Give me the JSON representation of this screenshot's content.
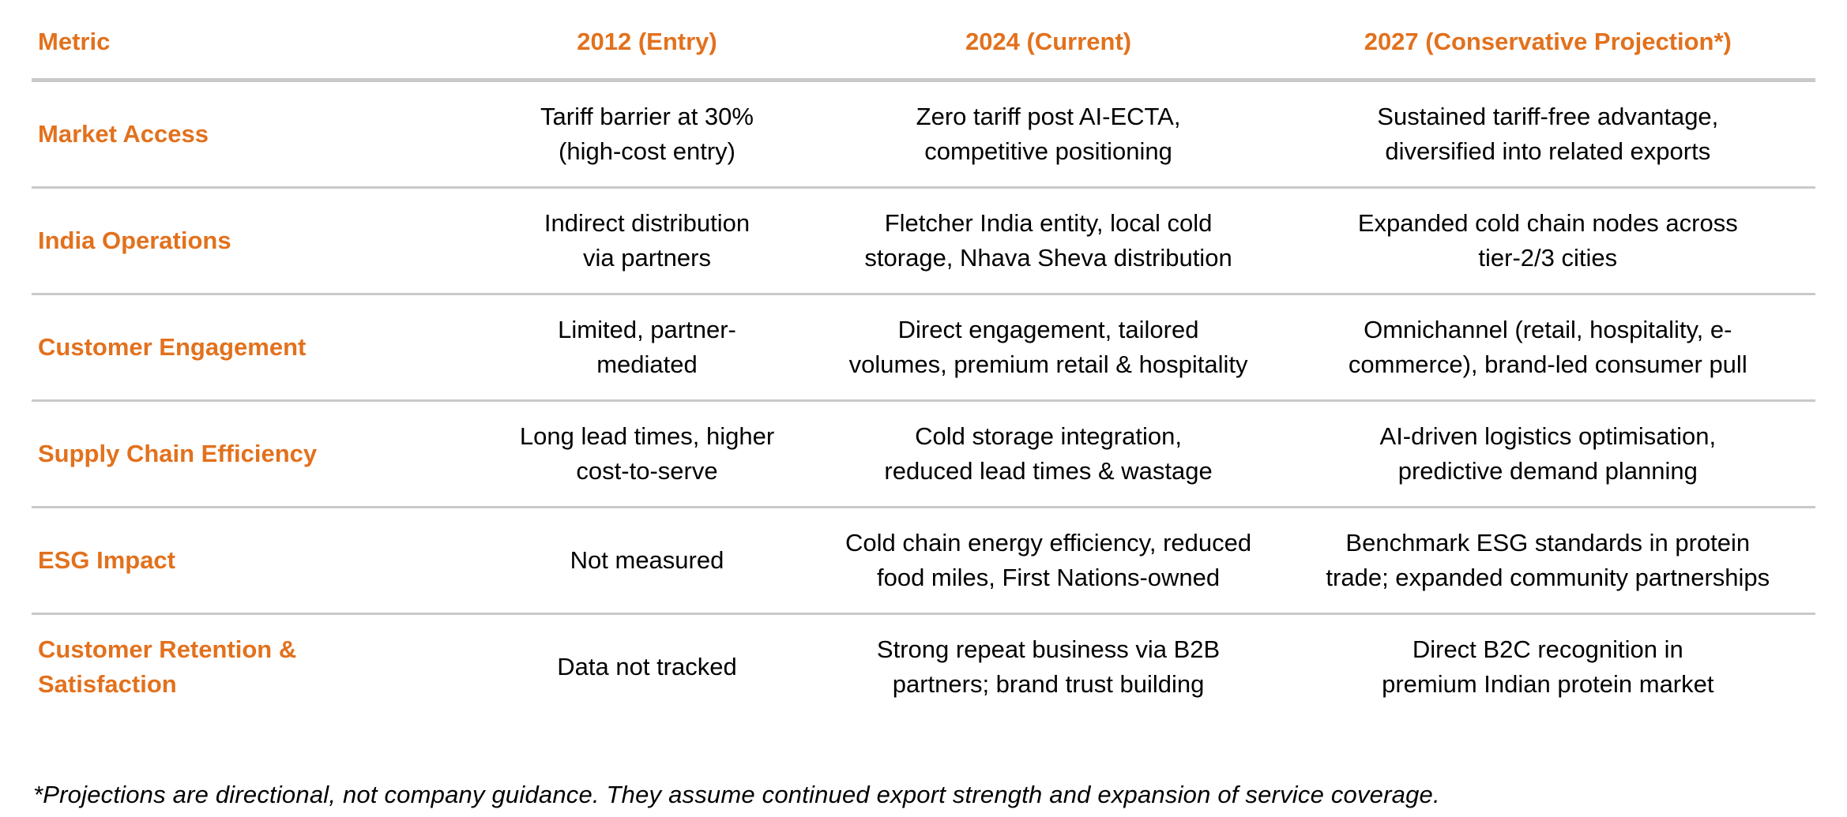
{
  "accent_color": "#e2711d",
  "divider_color": "#c9c9c9",
  "table": {
    "columns": [
      {
        "label": "Metric"
      },
      {
        "label": "2012 (Entry)"
      },
      {
        "label": "2024 (Current)"
      },
      {
        "label": "2027 (Conservative Projection*)"
      }
    ],
    "rows": [
      {
        "metric": "Market Access",
        "y2012": "Tariff barrier at 30%\n(high-cost entry)",
        "y2024": "Zero tariff post AI-ECTA,\ncompetitive positioning",
        "y2027": "Sustained tariff-free advantage,\ndiversified into related exports"
      },
      {
        "metric": "India Operations",
        "y2012": "Indirect distribution\nvia partners",
        "y2024": "Fletcher India entity, local cold\nstorage, Nhava Sheva distribution",
        "y2027": "Expanded cold chain nodes across\ntier-2/3 cities"
      },
      {
        "metric": "Customer Engagement",
        "y2012": "Limited, partner-\nmediated",
        "y2024": "Direct engagement, tailored\nvolumes, premium retail & hospitality",
        "y2027": "Omnichannel (retail, hospitality, e-\ncommerce), brand-led consumer pull"
      },
      {
        "metric": "Supply Chain Efficiency",
        "y2012": "Long lead times, higher\ncost-to-serve",
        "y2024": "Cold storage integration,\nreduced lead times & wastage",
        "y2027": "AI-driven logistics optimisation,\npredictive demand planning"
      },
      {
        "metric": "ESG Impact",
        "y2012": "Not measured",
        "y2024": "Cold chain energy efficiency, reduced\nfood miles, First Nations-owned",
        "y2027": "Benchmark ESG standards in protein\ntrade; expanded community partnerships"
      },
      {
        "metric": "Customer Retention &\nSatisfaction",
        "y2012": "Data not tracked",
        "y2024": "Strong repeat business via B2B\npartners; brand trust building",
        "y2027": "Direct B2C recognition in\npremium Indian protein market"
      }
    ]
  },
  "footnote": "*Projections are directional, not company guidance. They assume continued export strength and expansion of service coverage."
}
